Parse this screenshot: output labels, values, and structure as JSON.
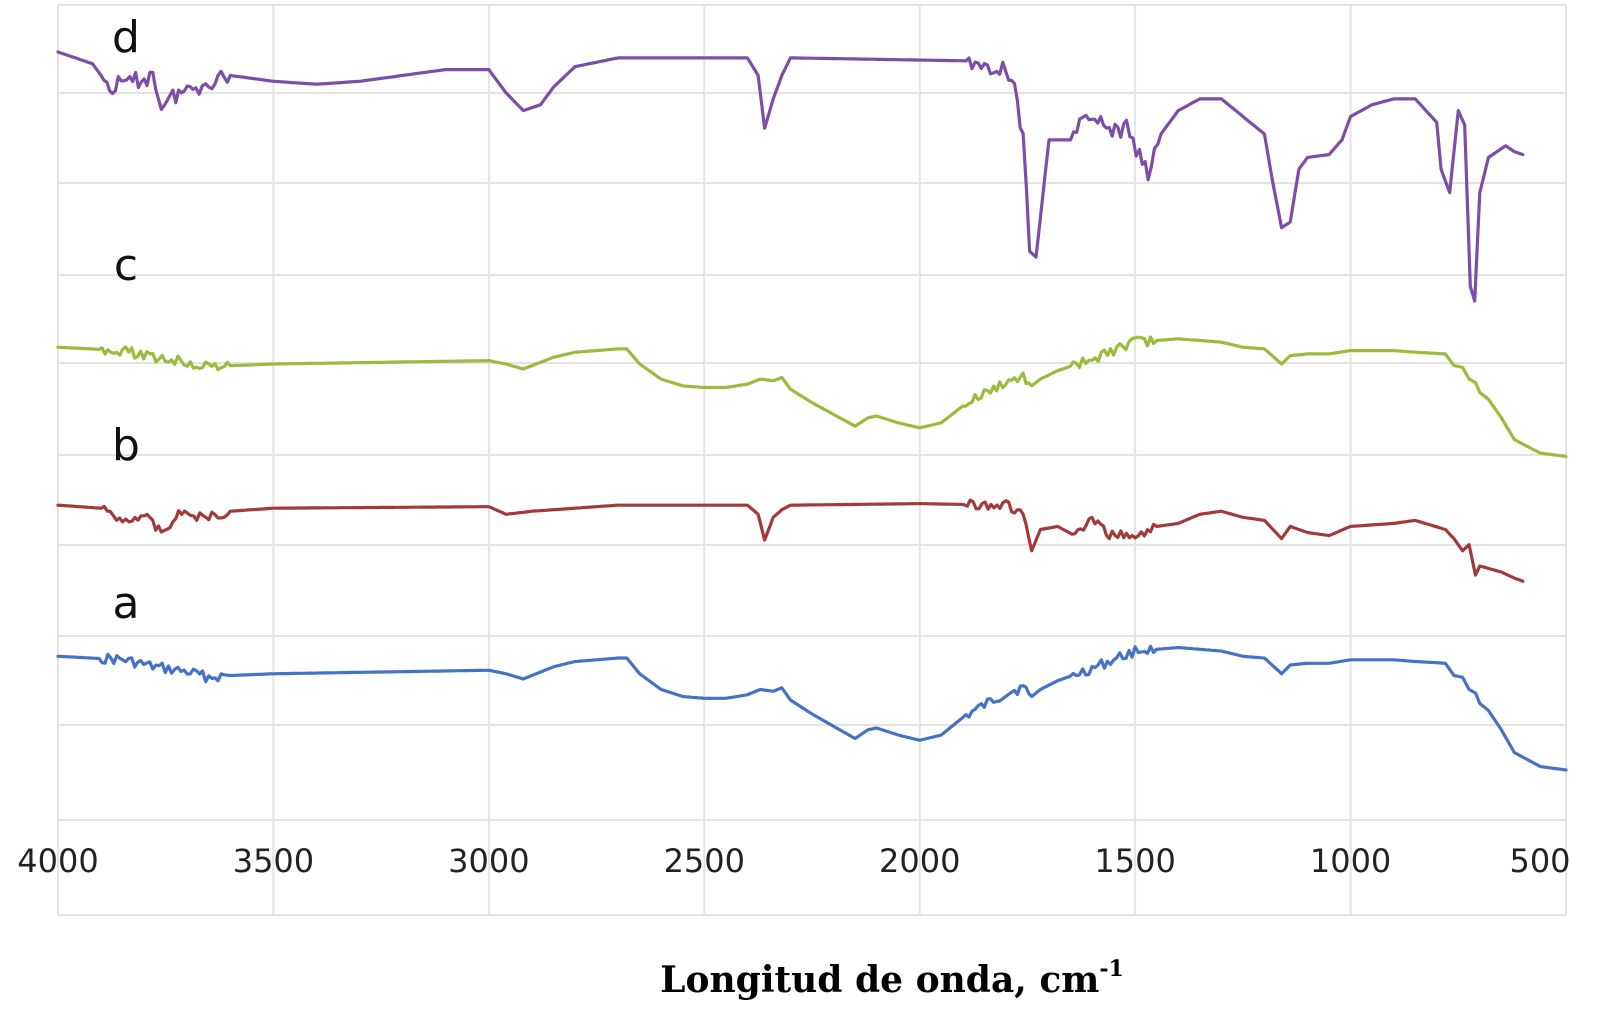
{
  "chart_data": {
    "type": "line",
    "title": "",
    "xlabel": "Longitud de onda, cm",
    "xlabel_superscript": "-1",
    "ylabel": "",
    "xlim": [
      4000,
      500
    ],
    "x_reversed": true,
    "x_ticks": [
      "4000",
      "3500",
      "3000",
      "2500",
      "2000",
      "1500",
      "1000",
      "500"
    ],
    "y_ticks_visible": false,
    "grid": true,
    "legend": "inline-labels-left",
    "series": [
      {
        "name": "a",
        "color": "#4472C4",
        "points": [
          [
            4000,
            15
          ],
          [
            3850,
            17
          ],
          [
            3780,
            21
          ],
          [
            3700,
            24
          ],
          [
            3650,
            27
          ],
          [
            3600,
            26
          ],
          [
            3500,
            25
          ],
          [
            3000,
            23
          ],
          [
            2960,
            25
          ],
          [
            2920,
            28
          ],
          [
            2880,
            24
          ],
          [
            2850,
            21
          ],
          [
            2800,
            18
          ],
          [
            2700,
            16
          ],
          [
            2680,
            16
          ],
          [
            2650,
            25
          ],
          [
            2600,
            34
          ],
          [
            2550,
            38
          ],
          [
            2500,
            39
          ],
          [
            2450,
            39
          ],
          [
            2400,
            37
          ],
          [
            2370,
            34
          ],
          [
            2340,
            35
          ],
          [
            2320,
            33
          ],
          [
            2300,
            40
          ],
          [
            2250,
            48
          ],
          [
            2200,
            55
          ],
          [
            2150,
            62
          ],
          [
            2120,
            57
          ],
          [
            2100,
            56
          ],
          [
            2050,
            60
          ],
          [
            2000,
            63
          ],
          [
            1950,
            60
          ],
          [
            1900,
            50
          ],
          [
            1850,
            43
          ],
          [
            1800,
            36
          ],
          [
            1760,
            33
          ],
          [
            1740,
            38
          ],
          [
            1720,
            34
          ],
          [
            1680,
            29
          ],
          [
            1600,
            22
          ],
          [
            1550,
            17
          ],
          [
            1500,
            12
          ],
          [
            1400,
            10
          ],
          [
            1300,
            12
          ],
          [
            1250,
            15
          ],
          [
            1200,
            16
          ],
          [
            1160,
            25
          ],
          [
            1140,
            20
          ],
          [
            1100,
            19
          ],
          [
            1050,
            19
          ],
          [
            1000,
            17
          ],
          [
            900,
            17
          ],
          [
            850,
            18
          ],
          [
            780,
            19
          ],
          [
            760,
            26
          ],
          [
            740,
            27
          ],
          [
            725,
            34
          ],
          [
            710,
            36
          ],
          [
            700,
            42
          ],
          [
            680,
            46
          ],
          [
            650,
            57
          ],
          [
            620,
            70
          ],
          [
            560,
            78
          ],
          [
            500,
            80
          ]
        ]
      },
      {
        "name": "b",
        "color": "#A33A3A",
        "points": [
          [
            4000,
            8
          ],
          [
            3900,
            10
          ],
          [
            3850,
            18
          ],
          [
            3800,
            14
          ],
          [
            3760,
            26
          ],
          [
            3720,
            14
          ],
          [
            3650,
            16
          ],
          [
            3600,
            12
          ],
          [
            3500,
            10
          ],
          [
            3000,
            9
          ],
          [
            2960,
            14
          ],
          [
            2900,
            12
          ],
          [
            2800,
            10
          ],
          [
            2700,
            8
          ],
          [
            2400,
            8
          ],
          [
            2375,
            14
          ],
          [
            2360,
            31
          ],
          [
            2340,
            16
          ],
          [
            2320,
            11
          ],
          [
            2300,
            8
          ],
          [
            2000,
            7
          ],
          [
            1800,
            8
          ],
          [
            1760,
            14
          ],
          [
            1740,
            38
          ],
          [
            1720,
            24
          ],
          [
            1680,
            22
          ],
          [
            1640,
            28
          ],
          [
            1600,
            18
          ],
          [
            1560,
            28
          ],
          [
            1520,
            26
          ],
          [
            1500,
            30
          ],
          [
            1450,
            22
          ],
          [
            1400,
            20
          ],
          [
            1350,
            14
          ],
          [
            1300,
            12
          ],
          [
            1250,
            16
          ],
          [
            1200,
            18
          ],
          [
            1160,
            30
          ],
          [
            1140,
            22
          ],
          [
            1100,
            26
          ],
          [
            1050,
            28
          ],
          [
            1000,
            22
          ],
          [
            900,
            20
          ],
          [
            850,
            18
          ],
          [
            780,
            24
          ],
          [
            760,
            30
          ],
          [
            740,
            38
          ],
          [
            725,
            34
          ],
          [
            710,
            54
          ],
          [
            700,
            48
          ],
          [
            650,
            52
          ],
          [
            620,
            56
          ],
          [
            600,
            58
          ]
        ]
      },
      {
        "name": "c",
        "color": "#9BBB3C",
        "points": [
          [
            4000,
            15
          ],
          [
            3850,
            17
          ],
          [
            3780,
            21
          ],
          [
            3700,
            24
          ],
          [
            3650,
            27
          ],
          [
            3600,
            26
          ],
          [
            3500,
            25
          ],
          [
            3000,
            23
          ],
          [
            2960,
            25
          ],
          [
            2920,
            28
          ],
          [
            2880,
            24
          ],
          [
            2850,
            21
          ],
          [
            2800,
            18
          ],
          [
            2700,
            16
          ],
          [
            2680,
            16
          ],
          [
            2650,
            25
          ],
          [
            2600,
            34
          ],
          [
            2550,
            38
          ],
          [
            2500,
            39
          ],
          [
            2450,
            39
          ],
          [
            2400,
            37
          ],
          [
            2370,
            34
          ],
          [
            2340,
            35
          ],
          [
            2320,
            33
          ],
          [
            2300,
            40
          ],
          [
            2250,
            48
          ],
          [
            2200,
            55
          ],
          [
            2150,
            62
          ],
          [
            2120,
            57
          ],
          [
            2100,
            56
          ],
          [
            2050,
            60
          ],
          [
            2000,
            63
          ],
          [
            1950,
            60
          ],
          [
            1900,
            50
          ],
          [
            1850,
            43
          ],
          [
            1800,
            36
          ],
          [
            1760,
            33
          ],
          [
            1740,
            38
          ],
          [
            1720,
            34
          ],
          [
            1680,
            29
          ],
          [
            1600,
            22
          ],
          [
            1550,
            17
          ],
          [
            1500,
            12
          ],
          [
            1400,
            10
          ],
          [
            1300,
            12
          ],
          [
            1250,
            15
          ],
          [
            1200,
            16
          ],
          [
            1160,
            25
          ],
          [
            1140,
            20
          ],
          [
            1100,
            19
          ],
          [
            1050,
            19
          ],
          [
            1000,
            17
          ],
          [
            900,
            17
          ],
          [
            850,
            18
          ],
          [
            780,
            19
          ],
          [
            760,
            26
          ],
          [
            740,
            27
          ],
          [
            725,
            34
          ],
          [
            710,
            36
          ],
          [
            700,
            42
          ],
          [
            680,
            46
          ],
          [
            650,
            57
          ],
          [
            620,
            70
          ],
          [
            560,
            78
          ],
          [
            500,
            80
          ]
        ]
      },
      {
        "name": "d",
        "color": "#7B4EA8",
        "points": [
          [
            4000,
            0
          ],
          [
            3920,
            4
          ],
          [
            3880,
            12
          ],
          [
            3820,
            10
          ],
          [
            3780,
            8
          ],
          [
            3760,
            18
          ],
          [
            3720,
            14
          ],
          [
            3680,
            12
          ],
          [
            3650,
            10
          ],
          [
            3600,
            8
          ],
          [
            3500,
            10
          ],
          [
            3400,
            11
          ],
          [
            3300,
            10
          ],
          [
            3100,
            6
          ],
          [
            3000,
            6
          ],
          [
            2960,
            14
          ],
          [
            2920,
            20
          ],
          [
            2880,
            18
          ],
          [
            2850,
            12
          ],
          [
            2800,
            5
          ],
          [
            2700,
            2
          ],
          [
            2400,
            2
          ],
          [
            2375,
            8
          ],
          [
            2360,
            26
          ],
          [
            2340,
            16
          ],
          [
            2320,
            8
          ],
          [
            2300,
            2
          ],
          [
            1900,
            3
          ],
          [
            1800,
            6
          ],
          [
            1780,
            10
          ],
          [
            1760,
            30
          ],
          [
            1745,
            68
          ],
          [
            1730,
            70
          ],
          [
            1715,
            50
          ],
          [
            1700,
            30
          ],
          [
            1650,
            30
          ],
          [
            1600,
            20
          ],
          [
            1560,
            28
          ],
          [
            1520,
            26
          ],
          [
            1490,
            36
          ],
          [
            1470,
            42
          ],
          [
            1440,
            28
          ],
          [
            1400,
            20
          ],
          [
            1350,
            16
          ],
          [
            1300,
            16
          ],
          [
            1250,
            22
          ],
          [
            1200,
            28
          ],
          [
            1180,
            45
          ],
          [
            1160,
            60
          ],
          [
            1140,
            58
          ],
          [
            1120,
            40
          ],
          [
            1100,
            36
          ],
          [
            1050,
            35
          ],
          [
            1020,
            30
          ],
          [
            1000,
            22
          ],
          [
            950,
            18
          ],
          [
            900,
            16
          ],
          [
            850,
            16
          ],
          [
            800,
            24
          ],
          [
            790,
            40
          ],
          [
            770,
            48
          ],
          [
            750,
            20
          ],
          [
            735,
            25
          ],
          [
            722,
            80
          ],
          [
            712,
            85
          ],
          [
            700,
            48
          ],
          [
            680,
            36
          ],
          [
            640,
            32
          ],
          [
            620,
            34
          ],
          [
            600,
            35
          ]
        ]
      }
    ]
  }
}
